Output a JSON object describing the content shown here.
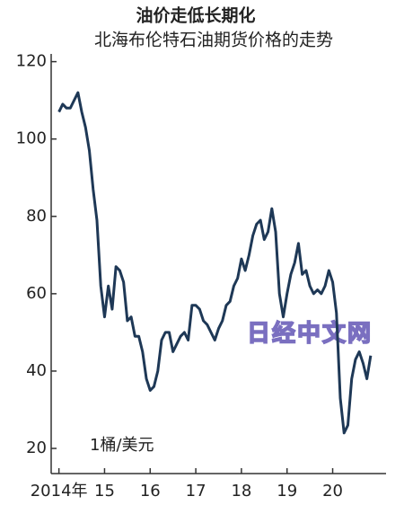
{
  "chart_data": {
    "type": "line",
    "title": "油价走低长期化",
    "subtitle": "北海布伦特石油期货价格的走势",
    "unit_label": "1桶/美元",
    "watermark": "日经中文网",
    "x": [
      2014,
      2014.083,
      2014.167,
      2014.25,
      2014.333,
      2014.417,
      2014.5,
      2014.583,
      2014.667,
      2014.75,
      2014.833,
      2014.917,
      2015,
      2015.083,
      2015.167,
      2015.25,
      2015.333,
      2015.417,
      2015.5,
      2015.583,
      2015.667,
      2015.75,
      2015.833,
      2015.917,
      2016,
      2016.083,
      2016.167,
      2016.25,
      2016.333,
      2016.417,
      2016.5,
      2016.583,
      2016.667,
      2016.75,
      2016.833,
      2016.917,
      2017,
      2017.083,
      2017.167,
      2017.25,
      2017.333,
      2017.417,
      2017.5,
      2017.583,
      2017.667,
      2017.75,
      2017.833,
      2017.917,
      2018,
      2018.083,
      2018.167,
      2018.25,
      2018.333,
      2018.417,
      2018.5,
      2018.583,
      2018.667,
      2018.75,
      2018.833,
      2018.917,
      2019,
      2019.083,
      2019.167,
      2019.25,
      2019.333,
      2019.417,
      2019.5,
      2019.583,
      2019.667,
      2019.75,
      2019.833,
      2019.917,
      2020,
      2020.083,
      2020.167,
      2020.25,
      2020.333,
      2020.417,
      2020.5,
      2020.583,
      2020.667,
      2020.75,
      2020.833
    ],
    "series": [
      {
        "color": "#1e3856",
        "values": [
          107,
          109,
          108,
          108,
          110,
          112,
          107,
          103,
          97,
          87,
          79,
          62,
          54,
          62,
          56,
          67,
          66,
          63,
          53,
          54,
          49,
          49,
          45,
          38,
          35,
          36,
          40,
          48,
          50,
          50,
          45,
          47,
          49,
          50,
          48,
          57,
          57,
          56,
          53,
          52,
          50,
          48,
          51,
          53,
          57,
          58,
          62,
          64,
          69,
          66,
          70,
          75,
          78,
          79,
          74,
          76,
          82,
          76,
          60,
          54,
          60,
          65,
          68,
          73,
          65,
          66,
          62,
          60,
          61,
          60,
          62,
          66,
          63,
          55,
          33,
          24,
          26,
          38,
          43,
          45,
          42,
          38,
          44
        ]
      }
    ],
    "xlim": [
      2013.83,
      2021.17
    ],
    "xticks": [
      {
        "value": 2014,
        "label": "2014年"
      },
      {
        "value": 2015,
        "label": "15"
      },
      {
        "value": 2016,
        "label": "16"
      },
      {
        "value": 2017,
        "label": "17"
      },
      {
        "value": 2018,
        "label": "18"
      },
      {
        "value": 2019,
        "label": "19"
      },
      {
        "value": 2020,
        "label": "20"
      }
    ],
    "ylim": [
      13.5,
      122
    ],
    "yticks": [
      20,
      40,
      60,
      80,
      100,
      120
    ],
    "grid": false
  }
}
